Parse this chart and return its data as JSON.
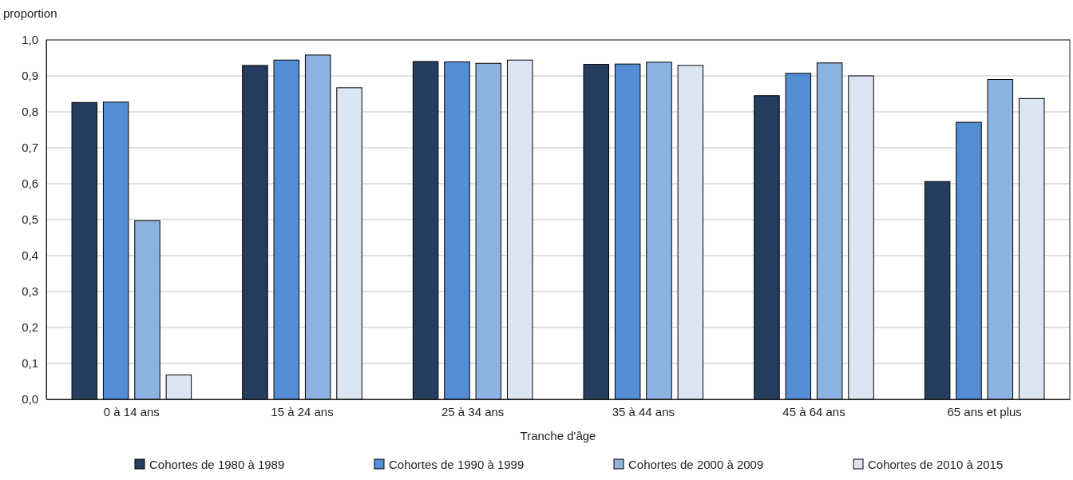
{
  "chart_data": {
    "type": "bar",
    "ylabel": "proportion",
    "xlabel": "Tranche d'âge",
    "categories": [
      "0 à 14 ans",
      "15 à 24 ans",
      "25 à 34 ans",
      "35 à 44 ans",
      "45 à 64 ans",
      "65 ans et plus"
    ],
    "series": [
      {
        "name": "Cohortes de 1980 à 1989",
        "color": "#253d5e",
        "values": [
          0.826,
          0.929,
          0.94,
          0.932,
          0.845,
          0.606
        ]
      },
      {
        "name": "Cohortes de 1990 à 1999",
        "color": "#548dd4",
        "values": [
          0.827,
          0.944,
          0.939,
          0.933,
          0.907,
          0.771
        ]
      },
      {
        "name": "Cohortes de 2000 à 2009",
        "color": "#8db3e2",
        "values": [
          0.497,
          0.958,
          0.935,
          0.938,
          0.936,
          0.89
        ]
      },
      {
        "name": "Cohortes de 2010 à 2015",
        "color": "#dce6f2",
        "values": [
          0.068,
          0.867,
          0.944,
          0.929,
          0.9,
          0.837
        ]
      }
    ],
    "ylim": [
      0,
      1
    ],
    "yticks": [
      {
        "value": 0,
        "label": "0,0"
      },
      {
        "value": 0.1,
        "label": "0,1"
      },
      {
        "value": 0.2,
        "label": "0,2"
      },
      {
        "value": 0.3,
        "label": "0,3"
      },
      {
        "value": 0.4,
        "label": "0,4"
      },
      {
        "value": 0.5,
        "label": "0,5"
      },
      {
        "value": 0.6,
        "label": "0,6"
      },
      {
        "value": 0.7,
        "label": "0,7"
      },
      {
        "value": 0.8,
        "label": "0,8"
      },
      {
        "value": 0.9,
        "label": "0,9"
      },
      {
        "value": 1,
        "label": "1,0"
      }
    ],
    "grid": "y",
    "legend": "bottom"
  }
}
